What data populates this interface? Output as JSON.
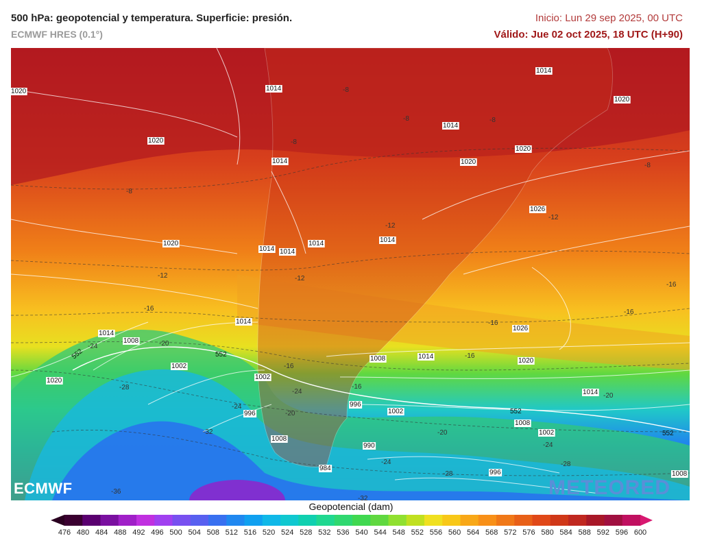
{
  "header": {
    "title": "500 hPa: geopotencial y temperatura. Superficie: presión.",
    "model": "ECMWF HRES (0.1°)",
    "init": "Inicio: Lun 29 sep 2025, 00 UTC",
    "valid": "Válido: Jue 02 oct 2025, 18 UTC (H+90)"
  },
  "map": {
    "pressure_labels": [
      "1020",
      "1020",
      "1014",
      "1014",
      "1014",
      "1014",
      "1014",
      "1014",
      "1014",
      "1020",
      "1020",
      "1026",
      "1020",
      "1020",
      "1014",
      "1008",
      "1002",
      "1020",
      "1014",
      "1008",
      "1014",
      "1026",
      "1020",
      "1008",
      "1014",
      "1002",
      "996",
      "1002",
      "996",
      "990",
      "984",
      "1008",
      "1002",
      "996",
      "1014",
      "1008"
    ],
    "temp_labels": [
      "-8",
      "-8",
      "-8",
      "-8",
      "-8",
      "-8",
      "-12",
      "-12",
      "-12",
      "-12",
      "-16",
      "-16",
      "-16",
      "-16",
      "-16",
      "-16",
      "-16",
      "-20",
      "-20",
      "-20",
      "-20",
      "-24",
      "-24",
      "-24",
      "-24",
      "-24",
      "-28",
      "-28",
      "-28",
      "-32",
      "-32",
      "-36"
    ],
    "geo_labels": [
      "552",
      "552",
      "552",
      "552"
    ]
  },
  "logos": {
    "ecmwf": "ECMWF",
    "meteored": "METEORED"
  },
  "legend": {
    "title": "Geopotencial (dam)",
    "ticks": [
      "476",
      "480",
      "484",
      "488",
      "492",
      "496",
      "500",
      "504",
      "508",
      "512",
      "516",
      "520",
      "524",
      "528",
      "532",
      "536",
      "540",
      "544",
      "548",
      "552",
      "556",
      "560",
      "564",
      "568",
      "572",
      "576",
      "580",
      "584",
      "588",
      "592",
      "596",
      "600"
    ],
    "colors": [
      "#3a0030",
      "#5a0070",
      "#7a10a0",
      "#a020c8",
      "#c030e0",
      "#a040f0",
      "#7850f0",
      "#5860f0",
      "#3870f0",
      "#2088f0",
      "#10a0f0",
      "#10b8e8",
      "#10c8d0",
      "#10d0b0",
      "#20d890",
      "#30d870",
      "#40d850",
      "#60d840",
      "#90e030",
      "#c0e020",
      "#f0e020",
      "#f8c818",
      "#f8a818",
      "#f89018",
      "#f07818",
      "#e86018",
      "#e04818",
      "#d03818",
      "#c02820",
      "#a81828",
      "#a01040",
      "#c01060"
    ]
  }
}
